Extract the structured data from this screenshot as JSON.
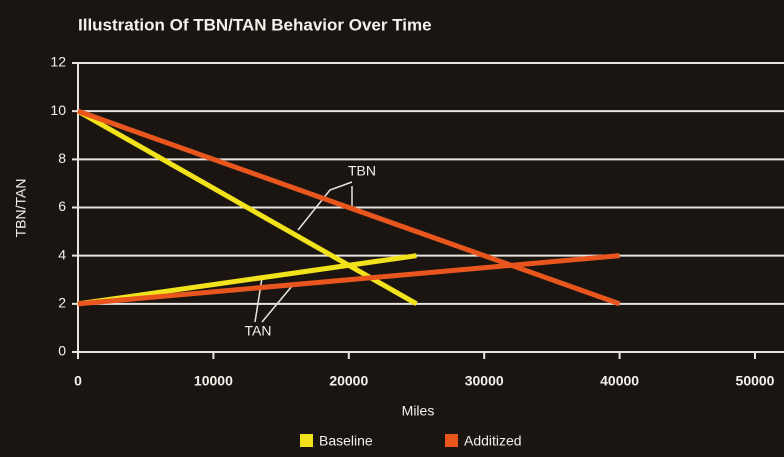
{
  "chart_data": {
    "type": "line",
    "title": "Illustration Of  TBN/TAN Behavior Over Time",
    "xlabel": "Miles",
    "ylabel": "TBN/TAN",
    "xlim": [
      0,
      50000
    ],
    "xticks": [
      0,
      10000,
      20000,
      30000,
      40000,
      50000
    ],
    "ylim": [
      0,
      12
    ],
    "yticks": [
      0,
      2,
      4,
      6,
      8,
      10,
      12
    ],
    "grid": true,
    "legend": "bottom",
    "series": [
      {
        "name": "Baseline",
        "color": "#f2e21c",
        "x": [
          0,
          25000,
          null,
          0,
          25000
        ],
        "values": [
          10,
          2,
          null,
          2,
          4
        ]
      },
      {
        "name": "Additized",
        "color": "#e8561e",
        "x": [
          0,
          40000,
          null,
          0,
          40000
        ],
        "values": [
          10,
          2,
          null,
          2,
          4
        ]
      }
    ],
    "annotations": [
      "TBN",
      "TAN"
    ]
  }
}
